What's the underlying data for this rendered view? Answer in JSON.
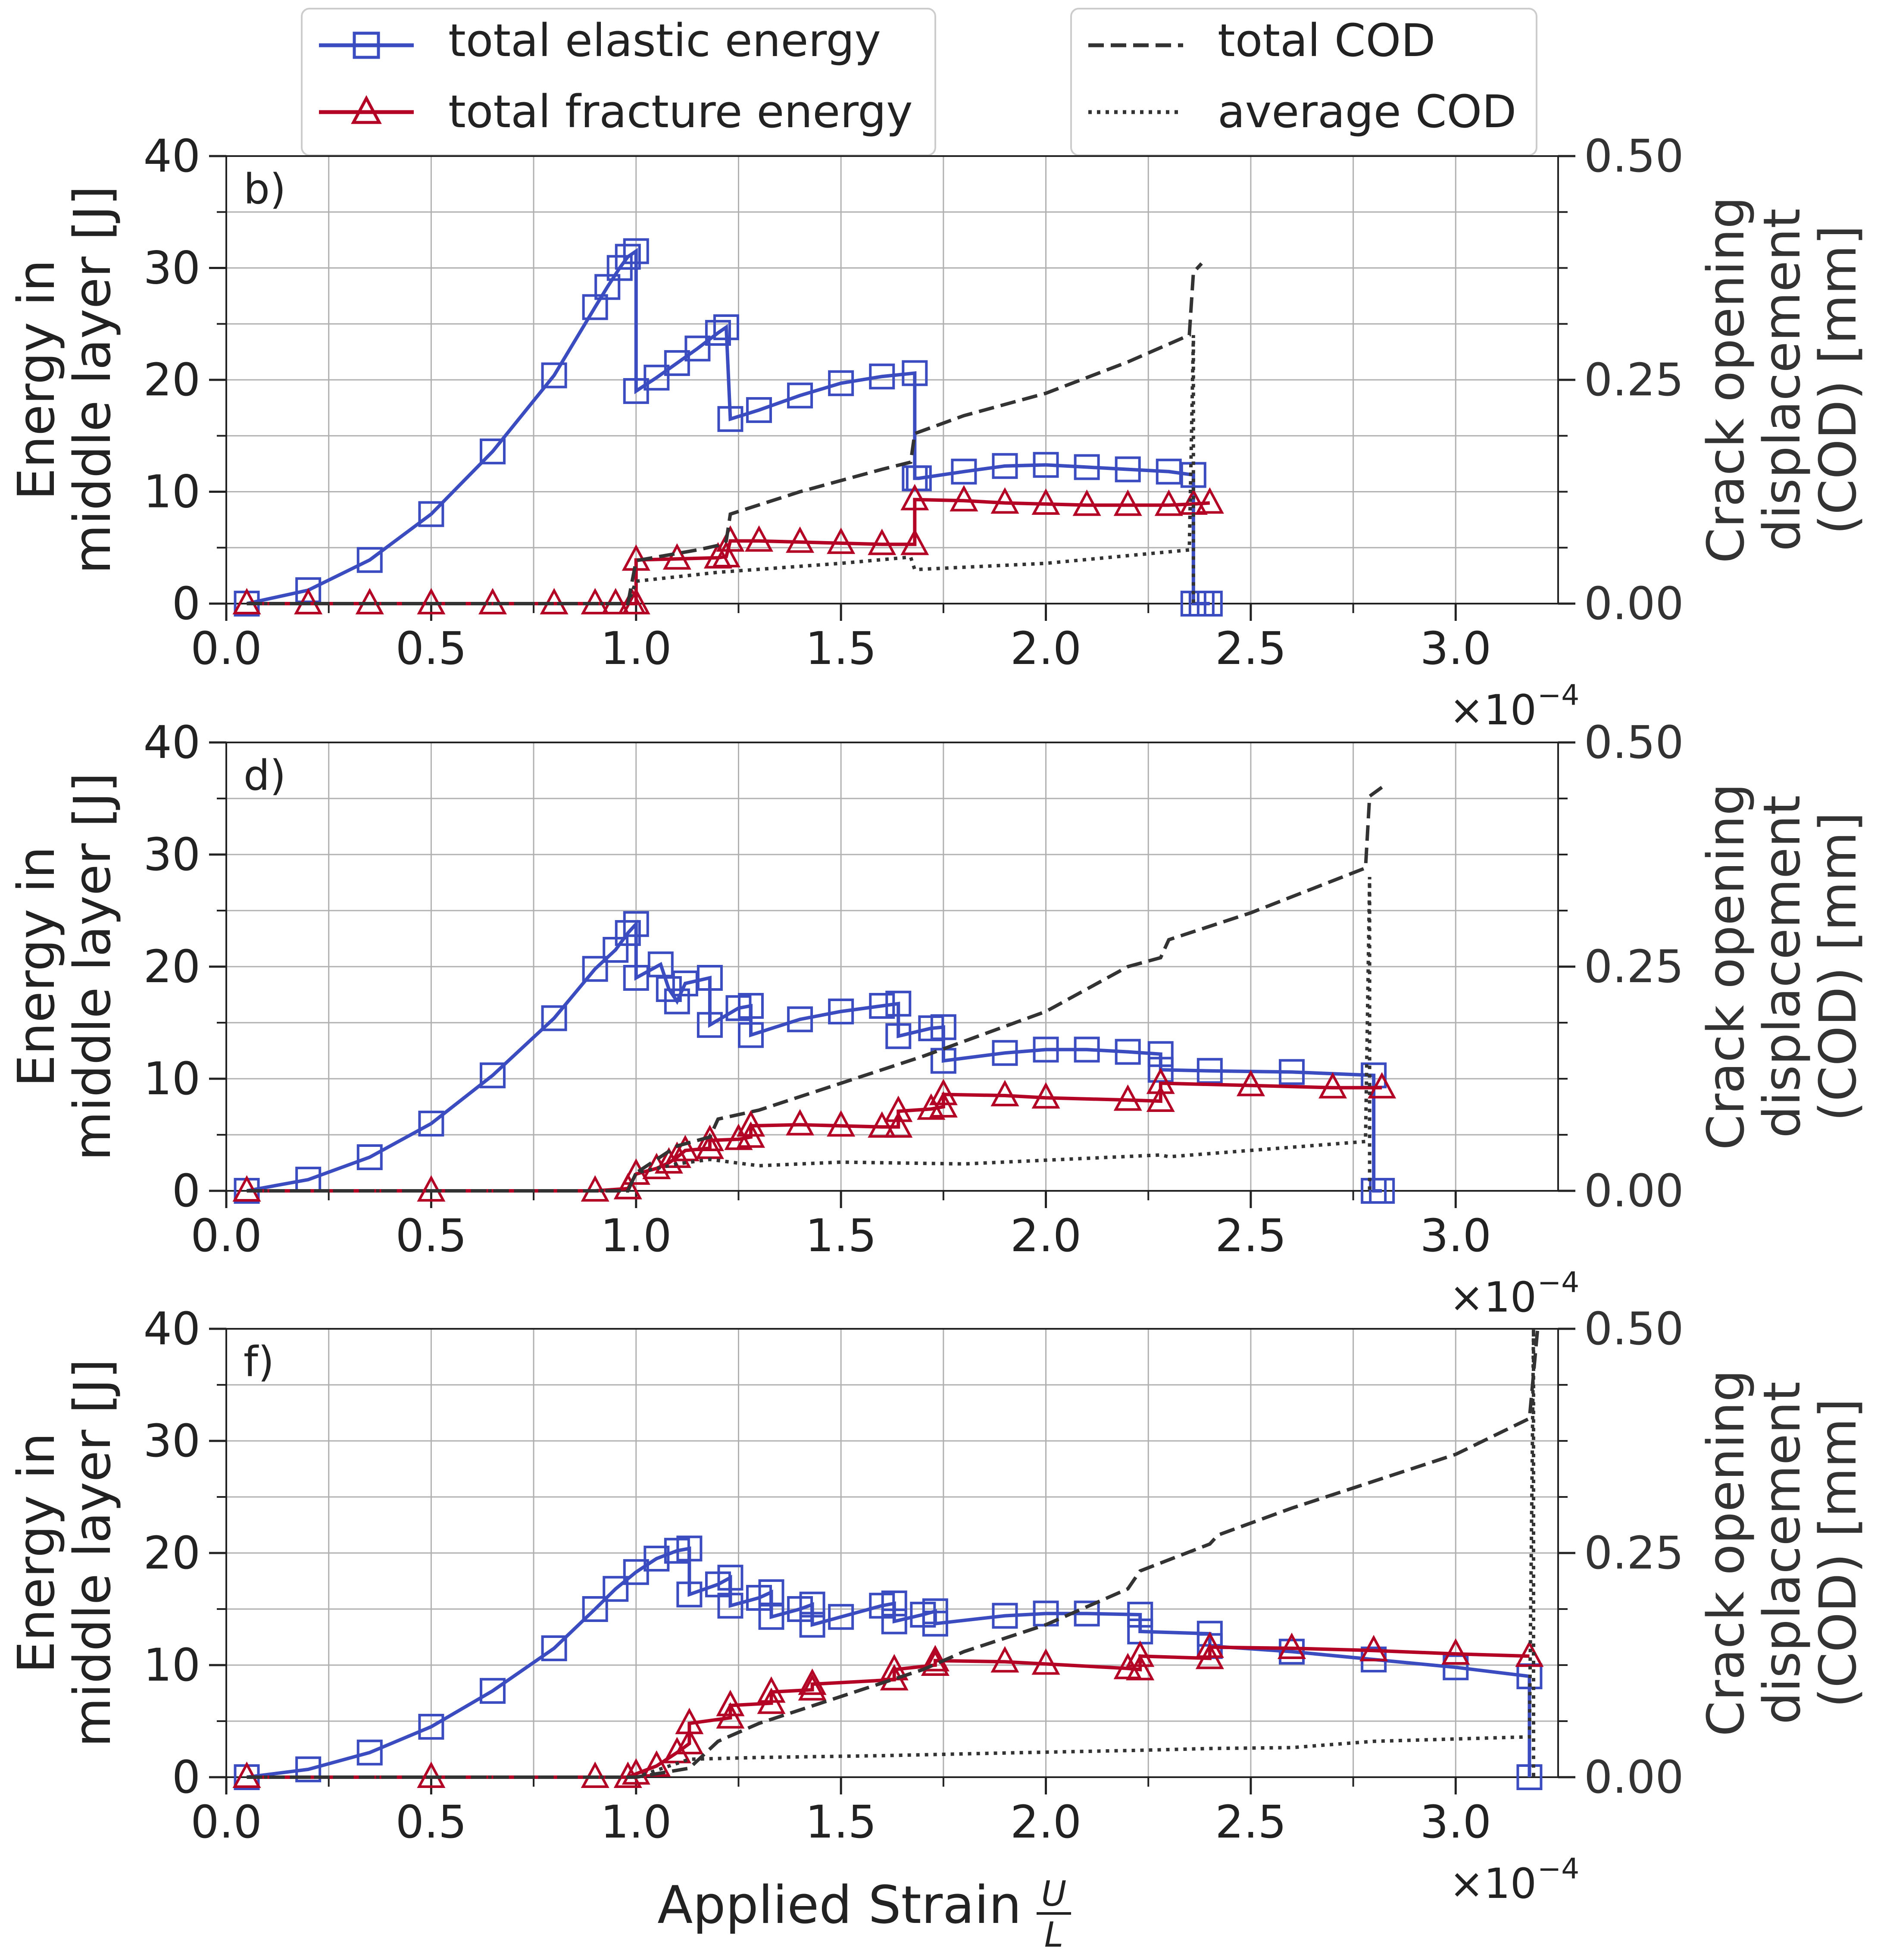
{
  "legend": {
    "elastic": "total elastic energy",
    "fracture": "total fracture energy",
    "total_cod": "total COD",
    "average_cod": "average COD"
  },
  "xlabel": "Applied Strain",
  "xlabel_frac_num": "U",
  "xlabel_frac_den": "L",
  "offset_label_base": "×10",
  "offset_label_exp": "−4",
  "ylabel_left_line1": "Energy in",
  "ylabel_left_line2": "middle layer [J]",
  "ylabel_right_line1": "Crack opening",
  "ylabel_right_line2": "displacement",
  "ylabel_right_line3": "(COD) [mm]",
  "colors": {
    "elastic": "#3a4cc0",
    "fracture": "#b40426",
    "cod": "#333333",
    "grid": "#b0b0b0"
  },
  "chart_data": [
    {
      "type": "line",
      "panel_label": "b)",
      "x_ticks": [
        "0.0",
        "0.5",
        "1.0",
        "1.5",
        "2.0",
        "2.5",
        "3.0"
      ],
      "y_ticks_left": [
        "0",
        "10",
        "20",
        "30",
        "40"
      ],
      "y_ticks_right": [
        "0.00",
        "0.25",
        "0.50"
      ],
      "xlim": [
        0.0,
        3.25
      ],
      "ylim_left": [
        0,
        40
      ],
      "ylim_right": [
        0.0,
        0.5
      ],
      "series": [
        {
          "name": "total elastic energy",
          "axis": "left",
          "x": [
            0.05,
            0.2,
            0.35,
            0.5,
            0.65,
            0.8,
            0.9,
            0.93,
            0.96,
            0.98,
            1.0,
            1.0,
            1.05,
            1.1,
            1.15,
            1.2,
            1.22,
            1.23,
            1.3,
            1.4,
            1.5,
            1.6,
            1.68,
            1.68,
            1.69,
            1.8,
            1.9,
            2.0,
            2.1,
            2.2,
            2.3,
            2.36,
            2.36,
            2.38,
            2.4
          ],
          "y": [
            0,
            1.2,
            3.9,
            8,
            13.6,
            20.4,
            26.5,
            28.3,
            30,
            31,
            31.5,
            19,
            20.2,
            21.5,
            22.8,
            24.2,
            24.7,
            16.5,
            17.3,
            18.6,
            19.7,
            20.3,
            20.6,
            11.2,
            11.2,
            11.8,
            12.3,
            12.4,
            12.2,
            12.0,
            11.8,
            11.5,
            0,
            0,
            0
          ]
        },
        {
          "name": "total fracture energy",
          "axis": "left",
          "x": [
            0.05,
            0.2,
            0.35,
            0.5,
            0.65,
            0.8,
            0.9,
            0.95,
            0.99,
            1.0,
            1.0,
            1.1,
            1.2,
            1.22,
            1.23,
            1.3,
            1.4,
            1.5,
            1.6,
            1.68,
            1.68,
            1.8,
            1.9,
            2.0,
            2.1,
            2.2,
            2.3,
            2.36,
            2.4
          ],
          "y": [
            0,
            0,
            0,
            0,
            0,
            0,
            0,
            0,
            0,
            0,
            3.9,
            4.0,
            4.1,
            4.2,
            5.6,
            5.6,
            5.5,
            5.4,
            5.3,
            5.3,
            9.3,
            9.2,
            9.0,
            8.9,
            8.8,
            8.8,
            8.8,
            8.9,
            9.0
          ]
        },
        {
          "name": "total COD",
          "axis": "right",
          "x": [
            0.05,
            0.5,
            0.98,
            1.0,
            1.05,
            1.15,
            1.2,
            1.22,
            1.23,
            1.4,
            1.6,
            1.67,
            1.68,
            1.8,
            2.0,
            2.2,
            2.35,
            2.36,
            2.38
          ],
          "y": [
            0,
            0,
            0,
            0.048,
            0.052,
            0.06,
            0.065,
            0.07,
            0.1,
            0.125,
            0.15,
            0.158,
            0.19,
            0.21,
            0.235,
            0.27,
            0.3,
            0.37,
            0.38
          ]
        },
        {
          "name": "average COD",
          "axis": "right",
          "x": [
            0.05,
            0.5,
            0.98,
            1.0,
            1.2,
            1.5,
            1.67,
            1.68,
            2.0,
            2.35,
            2.36,
            2.36
          ],
          "y": [
            0,
            0,
            0,
            0.025,
            0.035,
            0.045,
            0.052,
            0.038,
            0.045,
            0.06,
            0.3,
            0
          ]
        }
      ]
    },
    {
      "type": "line",
      "panel_label": "d)",
      "x_ticks": [
        "0.0",
        "0.5",
        "1.0",
        "1.5",
        "2.0",
        "2.5",
        "3.0"
      ],
      "y_ticks_left": [
        "0",
        "10",
        "20",
        "30",
        "40"
      ],
      "y_ticks_right": [
        "0.00",
        "0.25",
        "0.50"
      ],
      "xlim": [
        0.0,
        3.25
      ],
      "ylim_left": [
        0,
        40
      ],
      "ylim_right": [
        0.0,
        0.5
      ],
      "series": [
        {
          "name": "total elastic energy",
          "axis": "left",
          "x": [
            0.05,
            0.2,
            0.35,
            0.5,
            0.65,
            0.8,
            0.9,
            0.95,
            0.98,
            1.0,
            1.0,
            1.06,
            1.08,
            1.1,
            1.12,
            1.18,
            1.18,
            1.25,
            1.28,
            1.28,
            1.4,
            1.5,
            1.6,
            1.64,
            1.64,
            1.72,
            1.75,
            1.75,
            1.9,
            2.0,
            2.1,
            2.2,
            2.28,
            2.28,
            2.4,
            2.6,
            2.8,
            2.8,
            2.82
          ],
          "y": [
            0,
            1.0,
            3.0,
            6.0,
            10.3,
            15.4,
            19.8,
            21.5,
            23.0,
            23.8,
            19.0,
            20.2,
            18.0,
            16.9,
            18.5,
            19.0,
            14.8,
            16.3,
            16.5,
            13.9,
            15.3,
            16.0,
            16.5,
            16.7,
            13.8,
            14.5,
            14.6,
            11.6,
            12.3,
            12.6,
            12.6,
            12.4,
            12.2,
            10.8,
            10.7,
            10.6,
            10.3,
            0,
            0
          ]
        },
        {
          "name": "total fracture energy",
          "axis": "left",
          "x": [
            0.05,
            0.5,
            0.9,
            0.98,
            1.0,
            1.05,
            1.08,
            1.1,
            1.12,
            1.18,
            1.18,
            1.25,
            1.28,
            1.28,
            1.4,
            1.5,
            1.6,
            1.64,
            1.64,
            1.72,
            1.75,
            1.75,
            1.9,
            2.0,
            2.2,
            2.28,
            2.28,
            2.5,
            2.7,
            2.82
          ],
          "y": [
            0,
            0,
            0,
            0.2,
            1.5,
            2.0,
            2.5,
            3.0,
            3.6,
            3.8,
            4.5,
            4.6,
            4.8,
            5.8,
            5.9,
            5.8,
            5.7,
            5.7,
            7.1,
            7.3,
            7.5,
            8.6,
            8.5,
            8.3,
            8.1,
            8.0,
            9.6,
            9.4,
            9.2,
            9.2
          ]
        },
        {
          "name": "total COD",
          "axis": "right",
          "x": [
            0.05,
            0.5,
            0.98,
            1.0,
            1.1,
            1.18,
            1.2,
            1.3,
            1.5,
            1.7,
            2.0,
            2.2,
            2.28,
            2.3,
            2.5,
            2.78,
            2.79,
            2.82
          ],
          "y": [
            0,
            0,
            0,
            0.02,
            0.05,
            0.06,
            0.08,
            0.09,
            0.12,
            0.15,
            0.2,
            0.25,
            0.26,
            0.28,
            0.31,
            0.36,
            0.44,
            0.45
          ]
        },
        {
          "name": "average COD",
          "axis": "right",
          "x": [
            0.05,
            0.5,
            0.98,
            1.0,
            1.1,
            1.18,
            1.3,
            1.5,
            1.8,
            2.28,
            2.3,
            2.78,
            2.79,
            2.79
          ],
          "y": [
            0,
            0,
            0,
            0.02,
            0.03,
            0.035,
            0.028,
            0.032,
            0.03,
            0.04,
            0.038,
            0.055,
            0.35,
            0
          ]
        }
      ]
    },
    {
      "type": "line",
      "panel_label": "f)",
      "x_ticks": [
        "0.0",
        "0.5",
        "1.0",
        "1.5",
        "2.0",
        "2.5",
        "3.0"
      ],
      "y_ticks_left": [
        "0",
        "10",
        "20",
        "30",
        "40"
      ],
      "y_ticks_right": [
        "0.00",
        "0.25",
        "0.50"
      ],
      "xlim": [
        0.0,
        3.25
      ],
      "ylim_left": [
        0,
        40
      ],
      "ylim_right": [
        0.0,
        0.5
      ],
      "series": [
        {
          "name": "total elastic energy",
          "axis": "left",
          "x": [
            0.05,
            0.2,
            0.35,
            0.5,
            0.65,
            0.8,
            0.9,
            0.95,
            1.0,
            1.05,
            1.1,
            1.13,
            1.13,
            1.2,
            1.23,
            1.23,
            1.3,
            1.33,
            1.33,
            1.4,
            1.43,
            1.43,
            1.5,
            1.6,
            1.63,
            1.63,
            1.7,
            1.73,
            1.73,
            1.9,
            2.0,
            2.1,
            2.23,
            2.23,
            2.4,
            2.4,
            2.6,
            2.8,
            3.0,
            3.18,
            3.18
          ],
          "y": [
            0,
            0.7,
            2.2,
            4.5,
            7.7,
            11.5,
            15.0,
            16.8,
            18.3,
            19.5,
            20.2,
            20.4,
            16.3,
            17.2,
            17.8,
            15.3,
            16.0,
            16.5,
            14.3,
            15.0,
            15.4,
            13.6,
            14.3,
            15.3,
            15.5,
            13.9,
            14.5,
            14.8,
            13.7,
            14.4,
            14.6,
            14.6,
            14.5,
            13.0,
            12.8,
            11.7,
            11.2,
            10.5,
            9.8,
            9.0,
            0
          ]
        },
        {
          "name": "total fracture energy",
          "axis": "left",
          "x": [
            0.05,
            0.5,
            0.9,
            0.98,
            1.0,
            1.05,
            1.1,
            1.13,
            1.13,
            1.23,
            1.23,
            1.33,
            1.33,
            1.43,
            1.43,
            1.63,
            1.63,
            1.73,
            1.73,
            1.9,
            2.0,
            2.2,
            2.23,
            2.23,
            2.4,
            2.4,
            2.6,
            2.8,
            3.0,
            3.18
          ],
          "y": [
            0,
            0,
            0,
            0,
            0.3,
            1.0,
            2.2,
            3.0,
            4.8,
            5.3,
            6.4,
            6.6,
            7.6,
            7.8,
            8.3,
            8.7,
            9.6,
            10.0,
            10.4,
            10.3,
            10.1,
            9.7,
            9.6,
            10.8,
            10.6,
            11.6,
            11.5,
            11.3,
            11.0,
            10.8
          ]
        },
        {
          "name": "total COD",
          "axis": "right",
          "x": [
            0.05,
            0.5,
            1.0,
            1.13,
            1.2,
            1.3,
            1.5,
            1.7,
            1.8,
            2.0,
            2.2,
            2.23,
            2.4,
            2.42,
            2.6,
            2.8,
            3.0,
            3.18,
            3.2
          ],
          "y": [
            0,
            0,
            0,
            0.01,
            0.04,
            0.06,
            0.09,
            0.12,
            0.14,
            0.17,
            0.21,
            0.23,
            0.26,
            0.27,
            0.3,
            0.33,
            0.36,
            0.4,
            0.5
          ]
        },
        {
          "name": "average COD",
          "axis": "right",
          "x": [
            0.05,
            0.5,
            1.0,
            1.13,
            1.3,
            1.6,
            1.9,
            2.23,
            2.4,
            2.6,
            2.8,
            3.18,
            3.19,
            3.19
          ],
          "y": [
            0,
            0,
            0,
            0.02,
            0.022,
            0.024,
            0.027,
            0.03,
            0.032,
            0.033,
            0.04,
            0.045,
            0.5,
            0
          ]
        }
      ]
    }
  ]
}
